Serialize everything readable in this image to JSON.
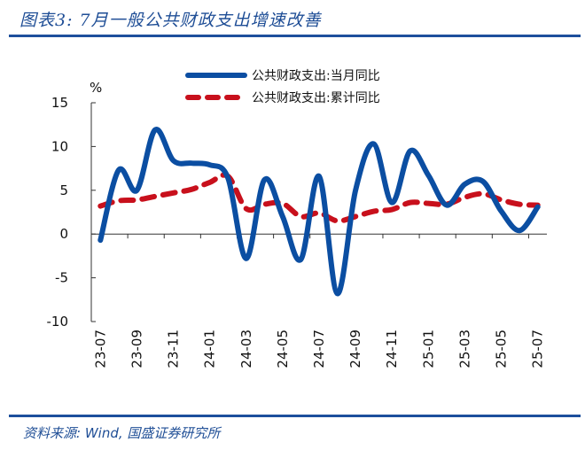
{
  "header": {
    "title": "图表3: 7月一般公共财政支出增速改善"
  },
  "footer": {
    "source": "资料来源: Wind, 国盛证券研究所"
  },
  "chart_data": {
    "type": "line",
    "title": "7月一般公共财政支出增速改善",
    "ylabel": "%",
    "xlabel": "",
    "ylim": [
      -10,
      15
    ],
    "yticks": [
      -10,
      -5,
      0,
      5,
      10,
      15
    ],
    "ytick_labels": [
      "-10",
      "-5",
      "0",
      "5",
      "10",
      "15"
    ],
    "x": [
      "23-07",
      "23-08",
      "23-09",
      "23-10",
      "23-11",
      "23-12",
      "24-01",
      "24-02",
      "24-03",
      "24-04",
      "24-05",
      "24-06",
      "24-07",
      "24-08",
      "24-09",
      "24-10",
      "24-11",
      "24-12",
      "25-01",
      "25-02",
      "25-03",
      "25-04",
      "25-05",
      "25-06",
      "25-07"
    ],
    "xtick_labels": [
      "23-07",
      "23-09",
      "23-11",
      "24-01",
      "24-03",
      "24-05",
      "24-07",
      "24-09",
      "24-11",
      "25-01",
      "25-03",
      "25-05",
      "25-07"
    ],
    "legend_position": "top-center",
    "grid": false,
    "series": [
      {
        "name": "公共财政支出:当月同比",
        "style": "solid",
        "color": "#0b4ea2",
        "values": [
          -0.7,
          7.3,
          5.0,
          11.9,
          8.4,
          8.1,
          7.9,
          6.4,
          -2.8,
          6.2,
          2.0,
          -2.9,
          6.6,
          -6.8,
          5.0,
          10.3,
          3.6,
          9.5,
          6.7,
          3.3,
          5.7,
          6.0,
          2.6,
          0.4,
          3.1
        ]
      },
      {
        "name": "公共财政支出:累计同比",
        "style": "dashed",
        "color": "#c8101c",
        "values": [
          3.2,
          3.8,
          3.9,
          4.3,
          4.7,
          5.1,
          5.9,
          6.6,
          2.9,
          3.4,
          3.5,
          2.0,
          2.4,
          1.5,
          2.0,
          2.6,
          2.8,
          3.6,
          3.5,
          3.4,
          4.2,
          4.6,
          3.9,
          3.4,
          3.3
        ]
      }
    ]
  }
}
